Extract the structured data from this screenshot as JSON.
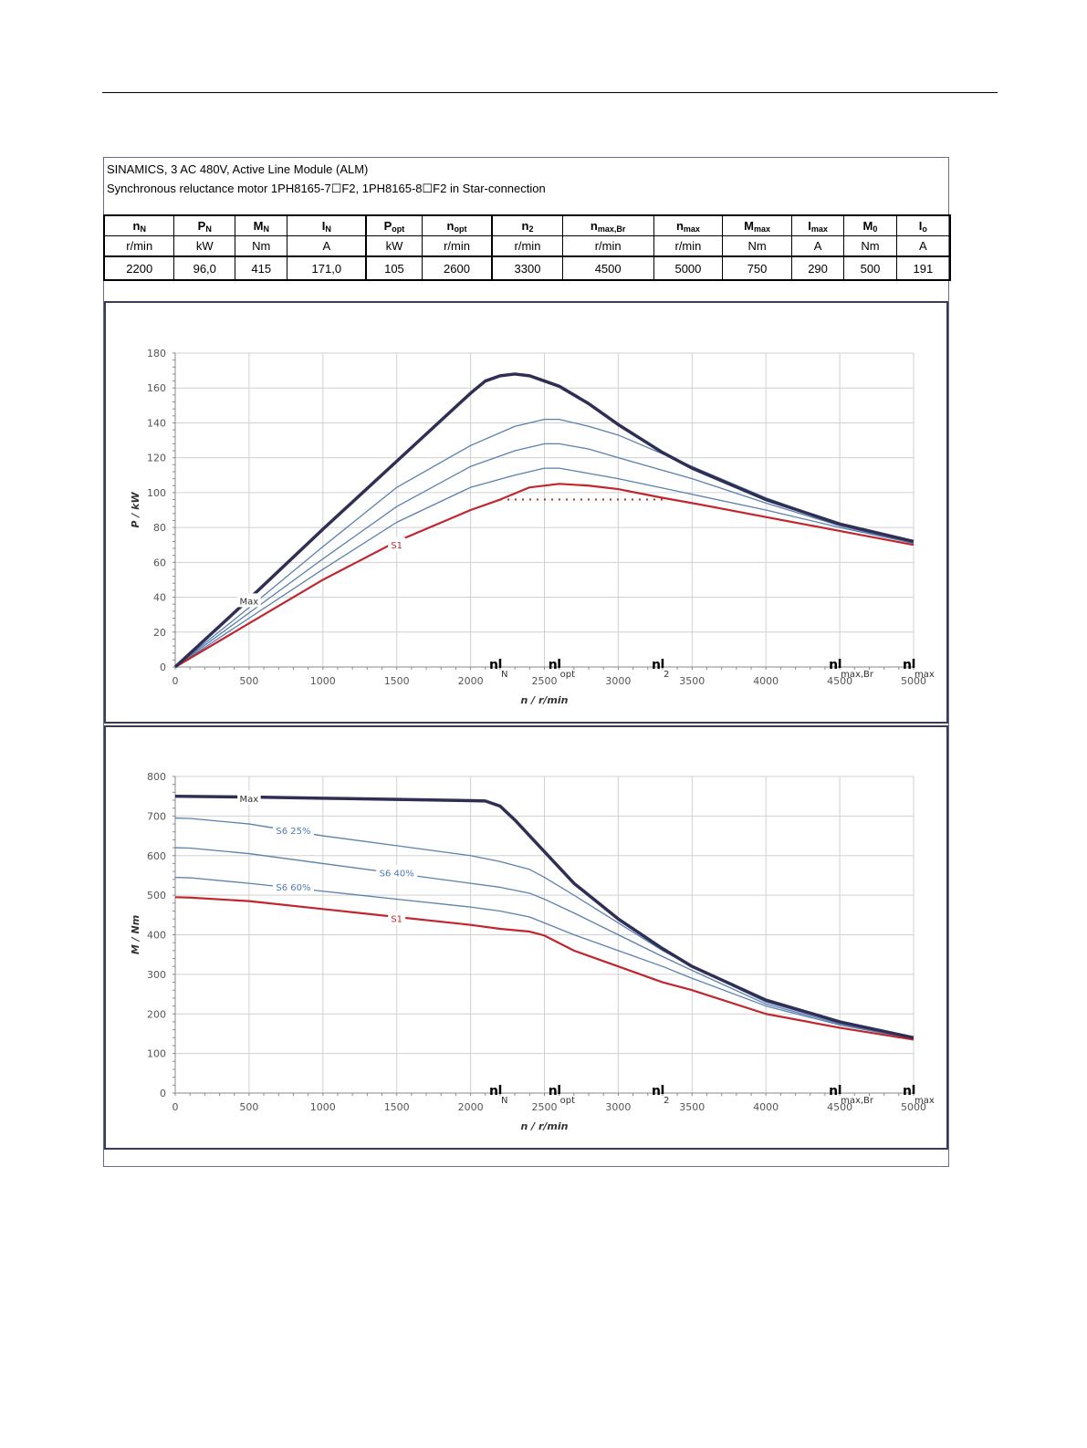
{
  "header": {
    "line1": "SINAMICS, 3 AC 480V, Active Line Module (ALM)",
    "line2": "Synchronous reluctance motor  1PH8165-7☐F2,  1PH8165-8☐F2   in Star-connection"
  },
  "spec_table": {
    "columns": [
      {
        "sym": "n",
        "sub": "N",
        "unit": "r/min",
        "value": "2200"
      },
      {
        "sym": "P",
        "sub": "N",
        "unit": "kW",
        "value": "96,0"
      },
      {
        "sym": "M",
        "sub": "N",
        "unit": "Nm",
        "value": "415"
      },
      {
        "sym": "I",
        "sub": "N",
        "unit": "A",
        "value": "171,0"
      },
      {
        "sym": "P",
        "sub": "opt",
        "unit": "kW",
        "value": "105"
      },
      {
        "sym": "n",
        "sub": "opt",
        "unit": "r/min",
        "value": "2600"
      },
      {
        "sym": "n",
        "sub": "2",
        "unit": "r/min",
        "value": "3300"
      },
      {
        "sym": "n",
        "sub": "max,Br",
        "unit": "r/min",
        "value": "4500"
      },
      {
        "sym": "n",
        "sub": "max",
        "unit": "r/min",
        "value": "5000"
      },
      {
        "sym": "M",
        "sub": "max",
        "unit": "Nm",
        "value": "750"
      },
      {
        "sym": "I",
        "sub": "max",
        "unit": "A",
        "value": "290"
      },
      {
        "sym": "M",
        "sub": "0",
        "unit": "Nm",
        "value": "500"
      },
      {
        "sym": "I",
        "sub": "o",
        "unit": "A",
        "value": "191"
      }
    ]
  },
  "colors": {
    "max": "#2f2f55",
    "s6": "#5a7fb0",
    "s1": "#c0272d",
    "grid": "#d0d0d0",
    "label_s6": "#4f7bb5"
  },
  "chart_data": [
    {
      "type": "line",
      "ylabel": "P / kW",
      "xlabel": "n / r/min",
      "xlim": [
        0,
        5000
      ],
      "ylim": [
        0,
        180
      ],
      "xticks": [
        "0",
        "500",
        "1000",
        "1500",
        "2000",
        "2500",
        "3000",
        "3500",
        "4000",
        "4500",
        "5000"
      ],
      "yticks": [
        "0",
        "20",
        "40",
        "60",
        "80",
        "100",
        "120",
        "140",
        "160",
        "180"
      ],
      "grid": true,
      "markers": [
        {
          "x": 2200,
          "main": "n",
          "sub": "N"
        },
        {
          "x": 2600,
          "main": "n",
          "sub": "opt"
        },
        {
          "x": 3300,
          "main": "n",
          "sub": "2"
        },
        {
          "x": 4500,
          "main": "n",
          "sub": "max,Br"
        },
        {
          "x": 5000,
          "main": "n",
          "sub": "max"
        }
      ],
      "series": [
        {
          "name": "Max",
          "style": "max",
          "label_at": [
            500,
            38
          ],
          "x": [
            0,
            500,
            1000,
            1500,
            2000,
            2100,
            2200,
            2300,
            2400,
            2500,
            2600,
            2800,
            3000,
            3300,
            3500,
            4000,
            4500,
            5000
          ],
          "y": [
            0,
            39,
            79,
            118,
            157,
            164,
            167,
            168,
            167,
            164,
            161,
            151,
            139,
            123,
            114,
            96,
            82,
            72
          ]
        },
        {
          "name": "",
          "style": "s6",
          "x": [
            0,
            500,
            1000,
            1500,
            2000,
            2300,
            2500,
            2600,
            2800,
            3000,
            3500,
            4000,
            4500,
            5000
          ],
          "y": [
            0,
            34,
            69,
            103,
            127,
            138,
            142,
            142,
            138,
            133,
            115,
            97,
            82,
            71
          ]
        },
        {
          "name": "",
          "style": "s6",
          "x": [
            0,
            500,
            1000,
            1500,
            2000,
            2300,
            2500,
            2600,
            2800,
            3000,
            3500,
            4000,
            4500,
            5000
          ],
          "y": [
            0,
            31,
            62,
            92,
            115,
            124,
            128,
            128,
            125,
            120,
            108,
            94,
            81,
            71
          ]
        },
        {
          "name": "",
          "style": "s6",
          "x": [
            0,
            500,
            1000,
            1500,
            2000,
            2300,
            2500,
            2600,
            2800,
            3000,
            3500,
            4000,
            4500,
            5000
          ],
          "y": [
            0,
            28,
            56,
            83,
            103,
            110,
            114,
            114,
            111,
            108,
            99,
            90,
            80,
            71
          ]
        },
        {
          "name": "S1",
          "style": "s1",
          "label_at": [
            1500,
            70
          ],
          "x": [
            0,
            500,
            1000,
            1500,
            2000,
            2200,
            2400,
            2600,
            2800,
            3000,
            3300,
            3500,
            4000,
            4500,
            5000
          ],
          "y": [
            0,
            25,
            50,
            72,
            90,
            96,
            103,
            105,
            104,
            102,
            97,
            94,
            86,
            78,
            70
          ]
        }
      ],
      "reference_line": {
        "x": [
          2200,
          3300
        ],
        "y": 96
      }
    },
    {
      "type": "line",
      "ylabel": "M / Nm",
      "xlabel": "n / r/min",
      "xlim": [
        0,
        5000
      ],
      "ylim": [
        0,
        800
      ],
      "xticks": [
        "0",
        "500",
        "1000",
        "1500",
        "2000",
        "2500",
        "3000",
        "3500",
        "4000",
        "4500",
        "5000"
      ],
      "yticks": [
        "0",
        "100",
        "200",
        "300",
        "400",
        "500",
        "600",
        "700",
        "800"
      ],
      "grid": true,
      "markers": [
        {
          "x": 2200,
          "main": "n",
          "sub": "N"
        },
        {
          "x": 2600,
          "main": "n",
          "sub": "opt"
        },
        {
          "x": 3300,
          "main": "n",
          "sub": "2"
        },
        {
          "x": 4500,
          "main": "n",
          "sub": "max,Br"
        },
        {
          "x": 5000,
          "main": "n",
          "sub": "max"
        }
      ],
      "series": [
        {
          "name": "Max",
          "style": "max",
          "label_at": [
            500,
            745
          ],
          "x": [
            0,
            500,
            1000,
            1500,
            2000,
            2100,
            2200,
            2300,
            2400,
            2500,
            2700,
            3000,
            3300,
            3500,
            4000,
            4500,
            5000
          ],
          "y": [
            750,
            748,
            745,
            742,
            739,
            738,
            725,
            690,
            650,
            610,
            530,
            440,
            365,
            320,
            235,
            180,
            140
          ]
        },
        {
          "name": "S6 25%",
          "style": "s6",
          "label_at": [
            800,
            664
          ],
          "x": [
            0,
            100,
            500,
            1000,
            1500,
            2000,
            2200,
            2400,
            2500,
            2700,
            3000,
            3300,
            3500,
            4000,
            4500,
            5000
          ],
          "y": [
            695,
            694,
            680,
            650,
            625,
            600,
            585,
            565,
            545,
            500,
            430,
            360,
            320,
            230,
            178,
            139
          ]
        },
        {
          "name": "S6 40%",
          "style": "s6",
          "label_at": [
            1500,
            557
          ],
          "x": [
            0,
            100,
            500,
            1000,
            1500,
            2000,
            2200,
            2400,
            2500,
            2700,
            3000,
            3300,
            3500,
            4000,
            4500,
            5000
          ],
          "y": [
            620,
            619,
            605,
            580,
            555,
            530,
            520,
            505,
            490,
            455,
            400,
            345,
            310,
            225,
            175,
            138
          ]
        },
        {
          "name": "S6 60%",
          "style": "s6",
          "label_at": [
            800,
            521
          ],
          "x": [
            0,
            100,
            500,
            1000,
            1500,
            2000,
            2200,
            2400,
            2500,
            2700,
            3000,
            3300,
            3500,
            4000,
            4500,
            5000
          ],
          "y": [
            545,
            544,
            530,
            510,
            490,
            470,
            460,
            445,
            430,
            400,
            360,
            320,
            290,
            220,
            172,
            137
          ]
        },
        {
          "name": "S1",
          "style": "s1",
          "label_at": [
            1500,
            441
          ],
          "x": [
            0,
            100,
            500,
            1000,
            1500,
            2000,
            2200,
            2400,
            2500,
            2700,
            3000,
            3300,
            3500,
            4000,
            4500,
            5000
          ],
          "y": [
            495,
            494,
            485,
            465,
            445,
            425,
            415,
            408,
            398,
            360,
            320,
            280,
            260,
            200,
            165,
            135
          ]
        }
      ]
    }
  ]
}
